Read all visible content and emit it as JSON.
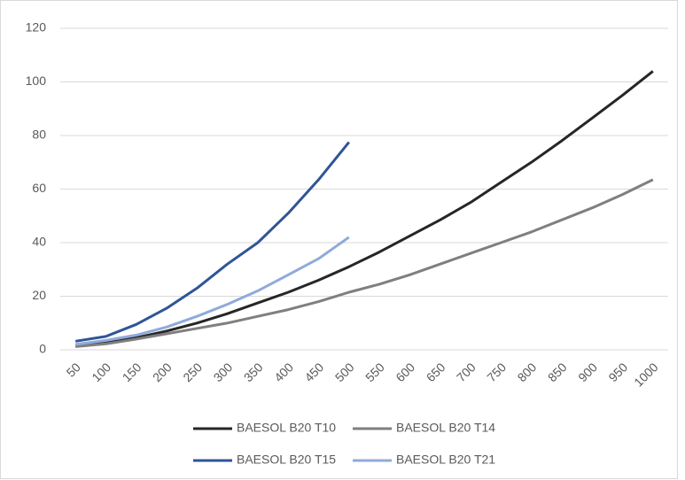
{
  "chart_data": {
    "type": "line",
    "categories": [
      "50",
      "100",
      "150",
      "200",
      "250",
      "300",
      "350",
      "400",
      "450",
      "500",
      "550",
      "600",
      "650",
      "700",
      "750",
      "800",
      "850",
      "900",
      "950",
      "1000"
    ],
    "series": [
      {
        "name": "BAESOL B20 T10",
        "color": "#262626",
        "values": [
          1.5,
          2.5,
          4.5,
          7,
          10,
          13.5,
          17.5,
          21.5,
          26,
          31,
          36.5,
          42.5,
          48.5,
          55,
          62.5,
          70,
          78,
          86.5,
          95,
          104
        ]
      },
      {
        "name": "BAESOL B20 T14",
        "color": "#7f7f7f",
        "values": [
          1.2,
          2.2,
          4,
          6,
          8,
          10,
          12.5,
          15,
          18,
          21.5,
          24.5,
          28,
          32,
          36,
          40,
          44,
          48.5,
          53,
          58,
          63.5
        ]
      },
      {
        "name": "BAESOL B20 T15",
        "color": "#2f5597",
        "values": [
          3.2,
          5,
          9.5,
          15.5,
          23,
          32,
          40,
          51,
          63.5,
          77.5,
          null,
          null,
          null,
          null,
          null,
          null,
          null,
          null,
          null,
          null
        ]
      },
      {
        "name": "BAESOL B20 T21",
        "color": "#8faadc",
        "values": [
          2,
          3.5,
          5.5,
          8.5,
          12.5,
          17,
          22,
          28,
          34,
          42,
          null,
          null,
          null,
          null,
          null,
          null,
          null,
          null,
          null,
          null
        ]
      }
    ],
    "ylim": [
      0,
      120
    ],
    "yticks": [
      0,
      20,
      40,
      60,
      80,
      100,
      120
    ],
    "grid": true
  }
}
